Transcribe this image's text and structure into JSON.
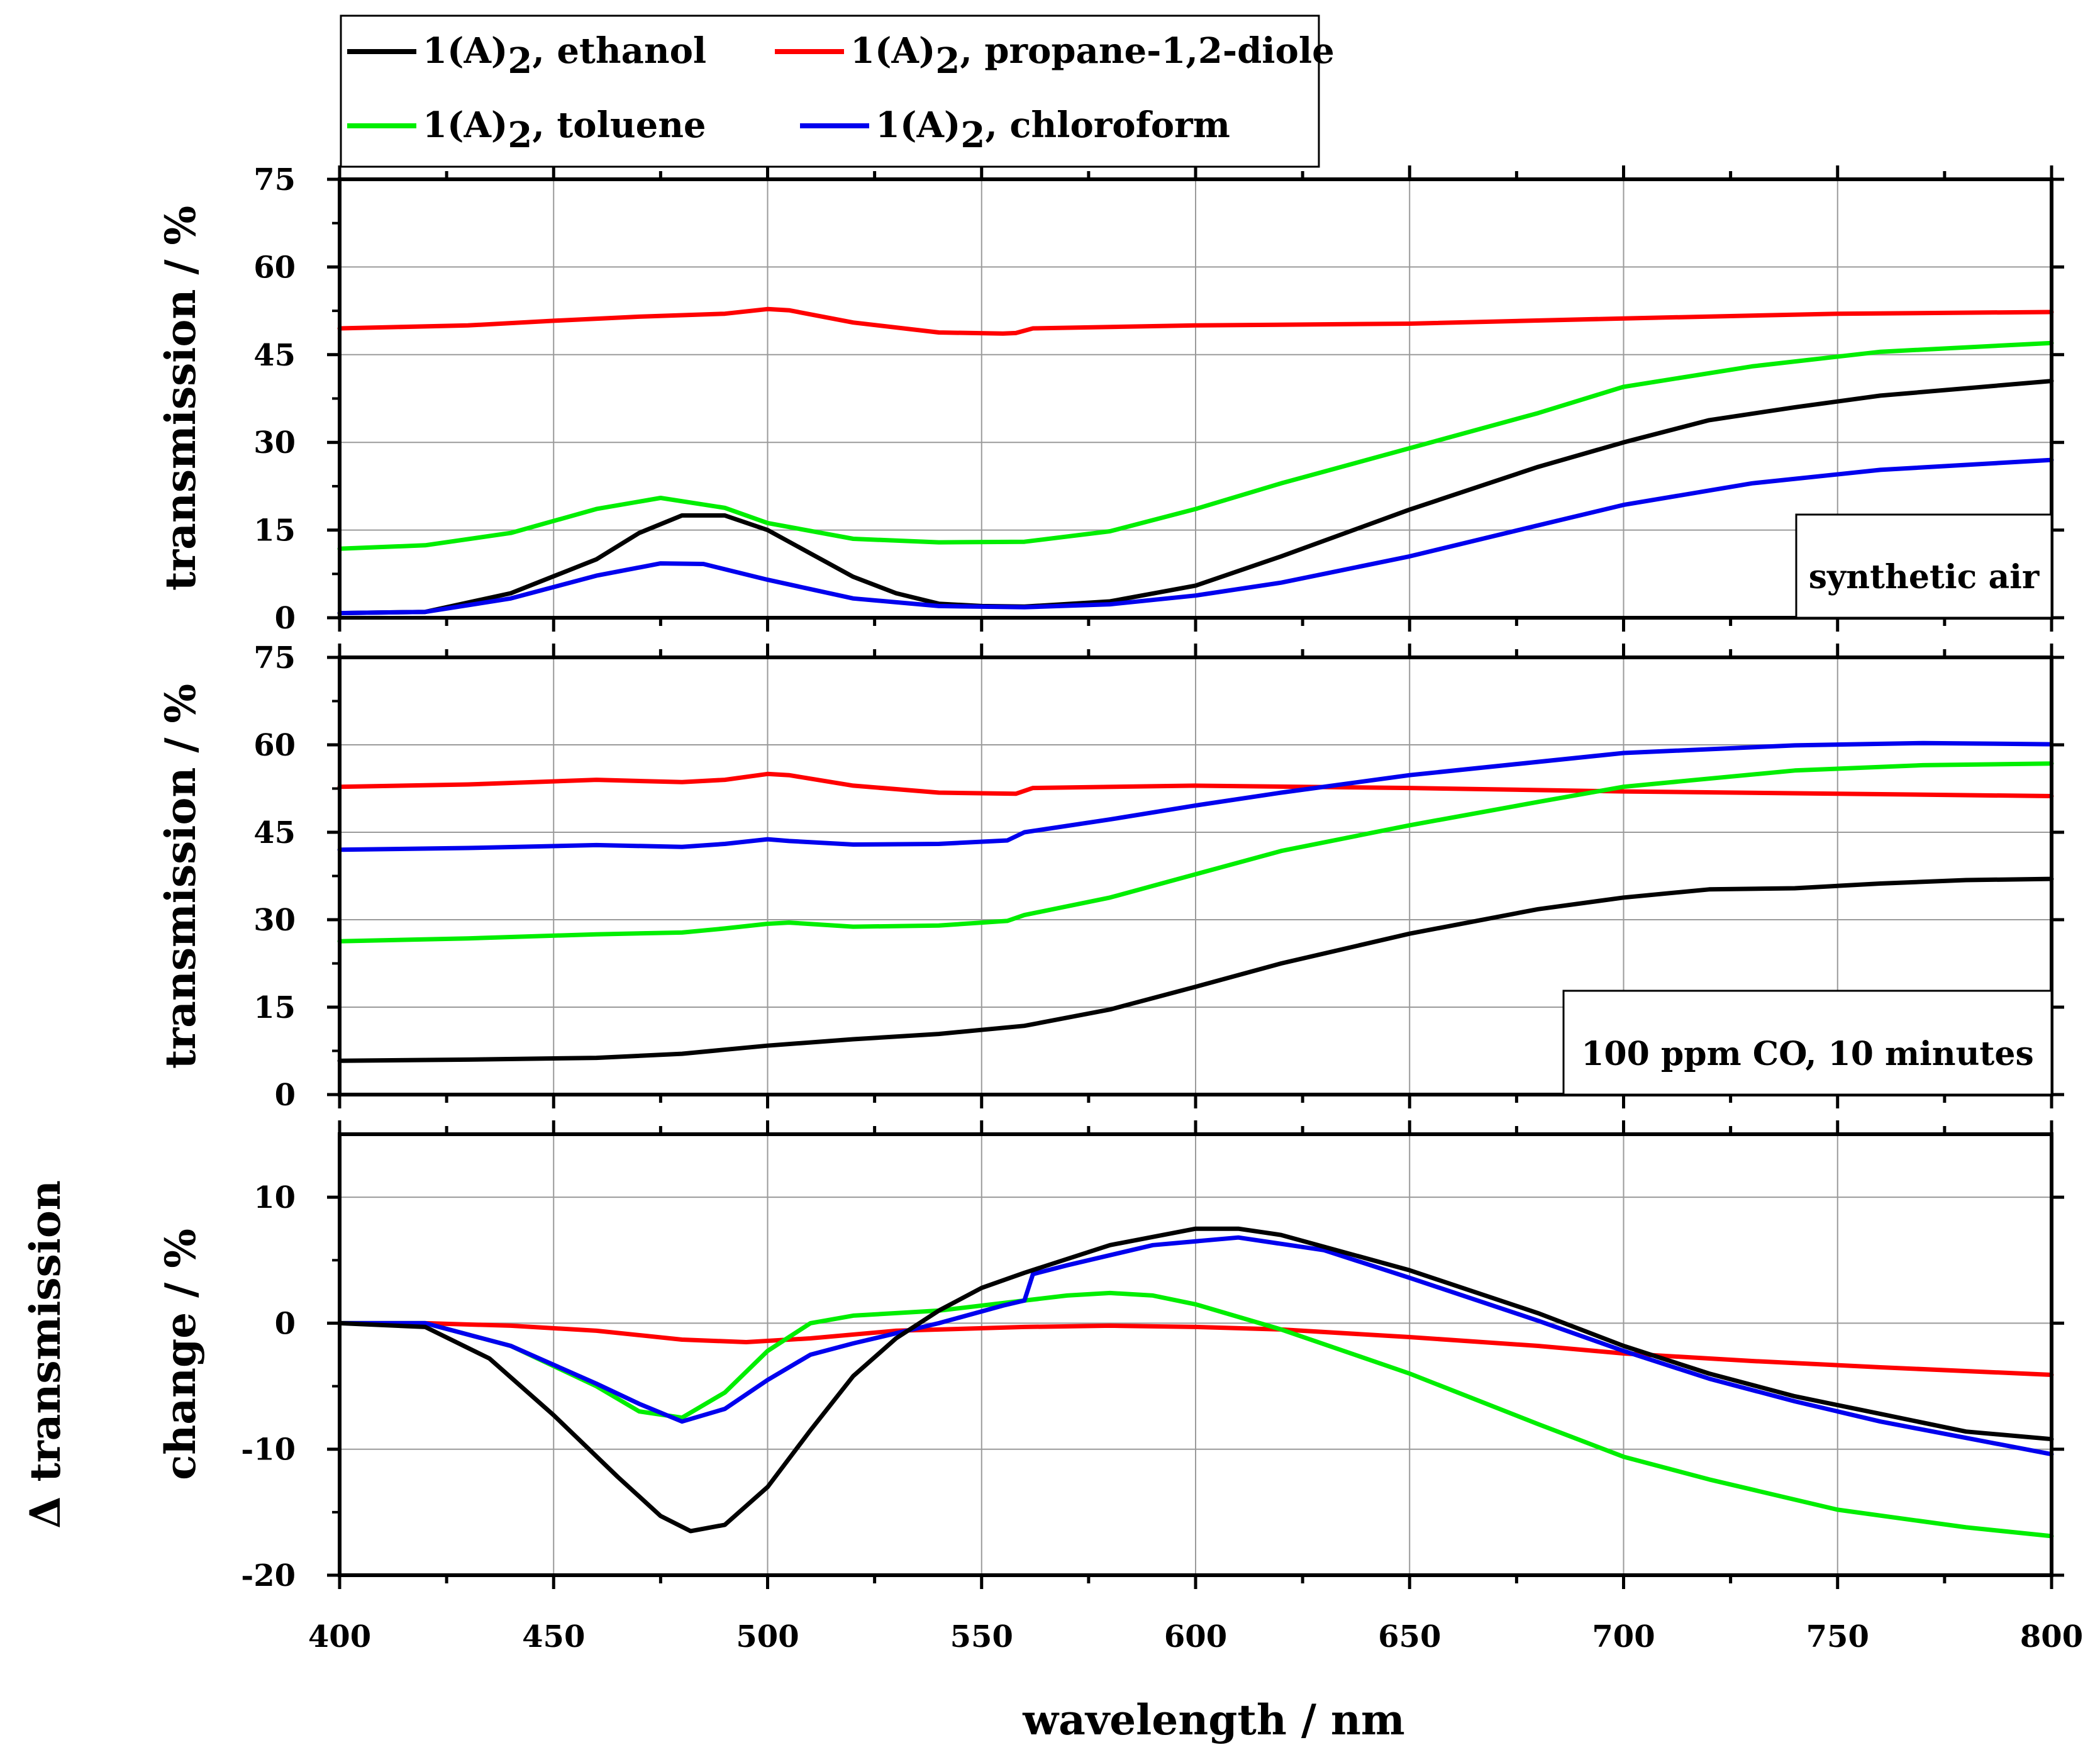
{
  "chart_data": {
    "type": "line",
    "xlabel": "wavelength / nm",
    "xlim": [
      400,
      800
    ],
    "xticks": [
      400,
      450,
      500,
      550,
      600,
      650,
      700,
      750,
      800
    ],
    "grid": true,
    "legend": {
      "placement": "top-left",
      "entries": [
        {
          "id": "ethanol",
          "prefix": "1(A)",
          "sub": "2",
          "suffix": ", ethanol",
          "color": "#000000"
        },
        {
          "id": "propane",
          "prefix": "1(A)",
          "sub": "2",
          "suffix": ", propane-1,2-diole",
          "color": "#ff0000"
        },
        {
          "id": "toluene",
          "prefix": "1(A)",
          "sub": "2",
          "suffix": ", toluene",
          "color": "#00ee00"
        },
        {
          "id": "chloroform",
          "prefix": "1(A)",
          "sub": "2",
          "suffix": ", chloroform",
          "color": "#0000ee"
        }
      ]
    },
    "panels": [
      {
        "id": "top",
        "ylabel": "transmission / %",
        "ylim": [
          0,
          75
        ],
        "yticks": [
          0,
          15,
          30,
          45,
          60,
          75
        ],
        "annotation": "synthetic air",
        "series": [
          {
            "id": "propane",
            "x": [
              400,
              430,
              450,
              470,
              490,
              500,
              505,
              520,
              540,
              555,
              558,
              562,
              600,
              650,
              700,
              750,
              800
            ],
            "y": [
              49.5,
              50,
              50.8,
              51.5,
              52,
              52.8,
              52.6,
              50.5,
              48.8,
              48.6,
              48.7,
              49.5,
              50,
              50.3,
              51.2,
              52,
              52.3
            ]
          },
          {
            "id": "toluene",
            "x": [
              400,
              420,
              440,
              460,
              475,
              490,
              500,
              520,
              540,
              560,
              580,
              600,
              620,
              650,
              680,
              700,
              730,
              760,
              800
            ],
            "y": [
              11.8,
              12.4,
              14.5,
              18.6,
              20.5,
              18.8,
              16.2,
              13.5,
              12.9,
              13,
              14.8,
              18.6,
              23,
              29,
              35,
              39.5,
              43,
              45.5,
              47
            ]
          },
          {
            "id": "ethanol",
            "x": [
              400,
              420,
              440,
              460,
              470,
              480,
              490,
              500,
              510,
              520,
              530,
              540,
              550,
              560,
              580,
              600,
              620,
              650,
              680,
              700,
              720,
              740,
              760,
              800
            ],
            "y": [
              0.8,
              1,
              4.2,
              10,
              14.5,
              17.5,
              17.5,
              15,
              11,
              7,
              4.2,
              2.4,
              2,
              1.9,
              2.8,
              5.5,
              10.5,
              18.5,
              25.8,
              30,
              33.8,
              36,
              38,
              40.5
            ]
          },
          {
            "id": "chloroform",
            "x": [
              400,
              420,
              440,
              460,
              475,
              485,
              500,
              520,
              540,
              560,
              580,
              600,
              620,
              650,
              680,
              700,
              730,
              760,
              800
            ],
            "y": [
              0.8,
              1,
              3.3,
              7.2,
              9.3,
              9.2,
              6.5,
              3.3,
              2,
              1.8,
              2.3,
              3.8,
              6,
              10.5,
              15.8,
              19.3,
              23,
              25.3,
              27
            ]
          }
        ]
      },
      {
        "id": "middle",
        "ylabel": "transmission / %",
        "ylim": [
          0,
          75
        ],
        "yticks": [
          0,
          15,
          30,
          45,
          60,
          75
        ],
        "annotation": "100 ppm CO, 10 minutes",
        "series": [
          {
            "id": "propane",
            "x": [
              400,
              430,
              460,
              480,
              490,
              500,
              505,
              520,
              540,
              558,
              562,
              600,
              650,
              700,
              750,
              800
            ],
            "y": [
              52.8,
              53.2,
              54,
              53.6,
              54,
              55,
              54.8,
              53,
              51.8,
              51.6,
              52.6,
              53,
              52.6,
              52,
              51.6,
              51.2
            ]
          },
          {
            "id": "chloroform",
            "x": [
              400,
              430,
              460,
              480,
              490,
              500,
              505,
              520,
              540,
              556,
              560,
              580,
              600,
              620,
              650,
              700,
              740,
              770,
              800
            ],
            "y": [
              42,
              42.3,
              42.8,
              42.5,
              43,
              43.8,
              43.5,
              42.9,
              43,
              43.6,
              45,
              47.2,
              49.6,
              51.8,
              54.8,
              58.6,
              59.9,
              60.3,
              60.1
            ]
          },
          {
            "id": "toluene",
            "x": [
              400,
              430,
              460,
              480,
              490,
              500,
              505,
              520,
              540,
              556,
              560,
              580,
              600,
              620,
              650,
              680,
              700,
              720,
              740,
              770,
              800
            ],
            "y": [
              26.3,
              26.8,
              27.5,
              27.8,
              28.5,
              29.3,
              29.5,
              28.8,
              29,
              29.8,
              30.8,
              33.8,
              37.8,
              41.8,
              46.2,
              50.2,
              52.8,
              54.2,
              55.6,
              56.5,
              56.8
            ]
          },
          {
            "id": "ethanol",
            "x": [
              400,
              430,
              460,
              480,
              500,
              520,
              540,
              560,
              580,
              600,
              620,
              650,
              680,
              700,
              720,
              740,
              760,
              780,
              800
            ],
            "y": [
              5.8,
              6,
              6.3,
              7,
              8.4,
              9.5,
              10.4,
              11.8,
              14.6,
              18.5,
              22.5,
              27.6,
              31.8,
              33.8,
              35.2,
              35.4,
              36.2,
              36.8,
              37
            ]
          }
        ]
      },
      {
        "id": "bottom",
        "ylabel": "change / %",
        "ylabel2": "Δ transmission",
        "ylim": [
          -20,
          15
        ],
        "yticks": [
          -20,
          -10,
          0,
          10
        ],
        "series": [
          {
            "id": "propane",
            "x": [
              400,
              420,
              440,
              460,
              480,
              495,
              510,
              530,
              560,
              580,
              600,
              620,
              650,
              680,
              700,
              730,
              760,
              800
            ],
            "y": [
              0,
              0,
              -0.2,
              -0.6,
              -1.3,
              -1.5,
              -1.2,
              -0.6,
              -0.3,
              -0.2,
              -0.3,
              -0.5,
              -1.1,
              -1.8,
              -2.4,
              -3,
              -3.5,
              -4.1
            ]
          },
          {
            "id": "toluene",
            "x": [
              400,
              420,
              440,
              460,
              470,
              480,
              490,
              500,
              510,
              520,
              540,
              560,
              570,
              580,
              590,
              600,
              620,
              650,
              680,
              700,
              720,
              750,
              780,
              800
            ],
            "y": [
              0,
              0,
              -1.8,
              -5,
              -7,
              -7.5,
              -5.5,
              -2.2,
              0,
              0.6,
              1,
              1.8,
              2.2,
              2.4,
              2.2,
              1.5,
              -0.5,
              -4,
              -8,
              -10.6,
              -12.4,
              -14.8,
              -16.2,
              -16.9
            ]
          },
          {
            "id": "chloroform",
            "x": [
              400,
              420,
              440,
              460,
              470,
              480,
              490,
              500,
              510,
              520,
              540,
              555,
              560,
              562,
              570,
              590,
              610,
              630,
              650,
              680,
              700,
              720,
              740,
              760,
              800
            ],
            "y": [
              0,
              0,
              -1.8,
              -4.8,
              -6.4,
              -7.8,
              -6.8,
              -4.5,
              -2.5,
              -1.6,
              0,
              1.4,
              1.8,
              3.9,
              4.6,
              6.2,
              6.8,
              5.8,
              3.6,
              0.2,
              -2.2,
              -4.4,
              -6.2,
              -7.8,
              -10.4
            ]
          },
          {
            "id": "ethanol",
            "x": [
              400,
              420,
              435,
              450,
              465,
              475,
              482,
              490,
              500,
              510,
              520,
              530,
              540,
              550,
              560,
              580,
              600,
              610,
              620,
              650,
              680,
              700,
              720,
              740,
              760,
              780,
              800
            ],
            "y": [
              0,
              -0.3,
              -2.8,
              -7.3,
              -12.2,
              -15.3,
              -16.5,
              -16,
              -13,
              -8.5,
              -4.2,
              -1.2,
              1,
              2.8,
              4,
              6.2,
              7.5,
              7.5,
              7,
              4.2,
              0.8,
              -1.8,
              -4,
              -5.8,
              -7.2,
              -8.6,
              -9.2
            ]
          }
        ]
      }
    ]
  }
}
